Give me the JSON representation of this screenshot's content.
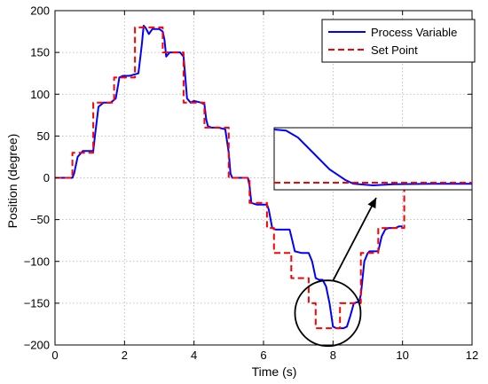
{
  "chart_data": {
    "type": "line",
    "title": "",
    "xlabel": "Time (s)",
    "ylabel": "Position (degree)",
    "xlim": [
      0,
      12
    ],
    "ylim": [
      -200,
      200
    ],
    "xticks": [
      0,
      2,
      4,
      6,
      8,
      10,
      12
    ],
    "yticks": [
      -200,
      -150,
      -100,
      -50,
      0,
      50,
      100,
      150,
      200
    ],
    "xtick_labels": [
      "0",
      "2",
      "4",
      "6",
      "8",
      "10",
      "12"
    ],
    "ytick_labels": [
      "−200",
      "−150",
      "−100",
      "−50",
      "0",
      "50",
      "100",
      "150",
      "200"
    ],
    "grid": true,
    "legend_position": "top-right",
    "series": [
      {
        "name": "Process Variable",
        "color": "#0000ff",
        "style": "solid",
        "x": [
          0,
          0.5,
          0.55,
          0.65,
          0.8,
          1.0,
          1.1,
          1.15,
          1.25,
          1.4,
          1.6,
          1.75,
          1.85,
          1.95,
          2.15,
          2.4,
          2.5,
          2.55,
          2.6,
          2.7,
          2.8,
          3.0,
          3.1,
          3.15,
          3.2,
          3.3,
          3.5,
          3.6,
          3.7,
          3.75,
          3.8,
          3.9,
          4.0,
          4.2,
          4.3,
          4.35,
          4.4,
          4.5,
          4.6,
          4.7,
          4.9,
          5.0,
          5.05,
          5.1,
          5.3,
          5.55,
          5.6,
          5.65,
          5.8,
          6.1,
          6.15,
          6.25,
          6.35,
          6.5,
          6.75,
          6.8,
          6.9,
          7.1,
          7.3,
          7.4,
          7.5,
          7.6,
          7.7,
          7.8,
          7.9,
          8.0,
          8.1,
          8.2,
          8.3,
          8.4,
          8.5,
          8.6,
          8.75,
          8.8,
          8.9,
          9.0,
          9.05,
          9.15,
          9.3,
          9.4,
          9.5,
          9.6,
          9.8,
          9.9,
          10.0
        ],
        "y": [
          0,
          0,
          5,
          25,
          32,
          32,
          32,
          50,
          85,
          90,
          90,
          95,
          120,
          122,
          122,
          125,
          160,
          182,
          180,
          172,
          178,
          178,
          175,
          165,
          145,
          150,
          150,
          150,
          145,
          120,
          95,
          90,
          92,
          90,
          88,
          70,
          62,
          60,
          60,
          60,
          58,
          30,
          5,
          0,
          0,
          0,
          -10,
          -30,
          -32,
          -32,
          -38,
          -60,
          -62,
          -62,
          -62,
          -70,
          -88,
          -90,
          -90,
          -100,
          -120,
          -122,
          -122,
          -130,
          -150,
          -178,
          -180,
          -180,
          -180,
          -178,
          -165,
          -150,
          -148,
          -140,
          -100,
          -90,
          -88,
          -88,
          -88,
          -70,
          -62,
          -60,
          -60,
          -58,
          -58
        ]
      },
      {
        "name": "Set Point",
        "color": "#ff0000",
        "style": "dashed",
        "x": [
          0,
          0.5,
          0.5,
          0.8,
          0.8,
          1.1,
          1.1,
          1.7,
          1.7,
          1.8,
          1.8,
          2.3,
          2.3,
          2.4,
          2.4,
          3.1,
          3.1,
          3.6,
          3.6,
          3.7,
          3.7,
          4.3,
          4.3,
          4.5,
          4.5,
          5.0,
          5.0,
          5.6,
          5.6,
          6.1,
          6.1,
          6.3,
          6.3,
          6.8,
          6.8,
          7.3,
          7.3,
          7.5,
          7.5,
          7.7,
          7.7,
          8.2,
          8.2,
          8.5,
          8.5,
          8.8,
          8.8,
          9.0,
          9.0,
          9.3,
          9.3,
          9.5,
          9.5,
          10.05,
          10.05
        ],
        "y": [
          0,
          0,
          30,
          30,
          30,
          30,
          90,
          90,
          120,
          120,
          120,
          120,
          180,
          180,
          180,
          180,
          150,
          150,
          150,
          150,
          90,
          90,
          60,
          60,
          60,
          60,
          0,
          0,
          -30,
          -30,
          -60,
          -60,
          -90,
          -90,
          -120,
          -120,
          -150,
          -150,
          -180,
          -180,
          -180,
          -180,
          -150,
          -150,
          -150,
          -150,
          -90,
          -90,
          -90,
          -90,
          -60,
          -60,
          -60,
          -60,
          0
        ]
      }
    ],
    "inset": {
      "description_free": true,
      "series": [
        {
          "name": "Process Variable",
          "x": [
            0,
            0.06,
            0.12,
            0.2,
            0.28,
            0.36,
            0.4,
            0.5,
            0.6,
            0.8,
            1.0
          ],
          "y": [
            1.0,
            0.98,
            0.85,
            0.55,
            0.25,
            0.05,
            -0.02,
            -0.05,
            -0.03,
            -0.02,
            -0.02
          ]
        },
        {
          "name": "Set Point",
          "x": [
            0,
            1.0
          ],
          "y": [
            0,
            0
          ]
        }
      ]
    }
  }
}
